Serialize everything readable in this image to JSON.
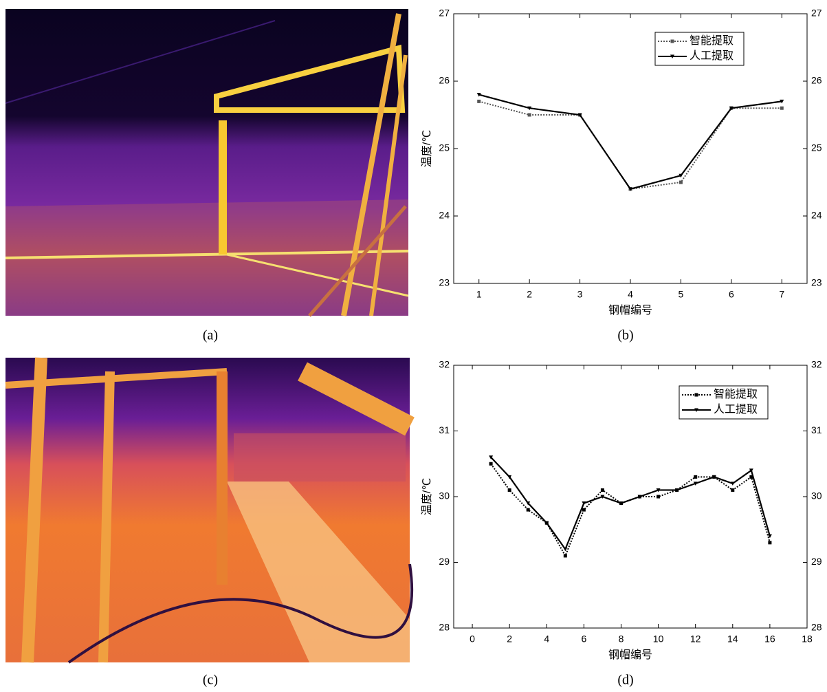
{
  "images": [
    {
      "caption": "(a)"
    },
    {
      "caption": "(c)"
    }
  ],
  "chart_data": [
    {
      "type": "line",
      "caption": "(b)",
      "x_label": "钢帽编号",
      "y_label": "温度/℃",
      "x": [
        1,
        2,
        3,
        4,
        5,
        6,
        7
      ],
      "xlim": [
        0.5,
        7.5
      ],
      "xticks": [
        1,
        2,
        3,
        4,
        5,
        6,
        7
      ],
      "ylim": [
        23,
        27
      ],
      "yticks": [
        23,
        24,
        25,
        26,
        27
      ],
      "y2lim": [
        23,
        27
      ],
      "y2ticks": [
        23,
        24,
        25,
        26,
        27
      ],
      "legend": "upper right",
      "series": [
        {
          "name": "智能提取",
          "color": "#555555",
          "line_style": "dotted",
          "marker": "square",
          "values": [
            25.7,
            25.5,
            25.5,
            24.4,
            24.5,
            25.6,
            25.6
          ]
        },
        {
          "name": "人工提取",
          "color": "#000000",
          "line_style": "solid",
          "marker": "triangle",
          "values": [
            25.8,
            25.6,
            25.5,
            24.4,
            24.6,
            25.6,
            25.7
          ]
        }
      ]
    },
    {
      "type": "line",
      "caption": "(d)",
      "x_label": "钢帽编号",
      "y_label": "温度/℃",
      "x": [
        1,
        2,
        3,
        4,
        5,
        6,
        7,
        8,
        9,
        10,
        11,
        12,
        13,
        14,
        15,
        16
      ],
      "xlim": [
        -1,
        18
      ],
      "xticks": [
        0,
        2,
        4,
        6,
        8,
        10,
        12,
        14,
        16,
        18
      ],
      "ylim": [
        28,
        32
      ],
      "yticks": [
        28,
        29,
        30,
        31,
        32
      ],
      "y2lim": [
        28,
        32
      ],
      "y2ticks": [
        28,
        29,
        30,
        31,
        32
      ],
      "legend": "upper right",
      "series": [
        {
          "name": "智能提取",
          "color": "#000000",
          "line_style": "dotted",
          "marker": "square",
          "values": [
            30.5,
            30.1,
            29.8,
            29.6,
            29.1,
            29.8,
            30.1,
            29.9,
            30.0,
            30.0,
            30.1,
            30.3,
            30.3,
            30.1,
            30.3,
            29.3
          ]
        },
        {
          "name": "人工提取",
          "color": "#000000",
          "line_style": "solid",
          "marker": "triangle",
          "values": [
            30.6,
            30.3,
            29.9,
            29.6,
            29.2,
            29.9,
            30.0,
            29.9,
            30.0,
            30.1,
            30.1,
            30.2,
            30.3,
            30.2,
            30.4,
            29.4
          ]
        }
      ]
    }
  ]
}
